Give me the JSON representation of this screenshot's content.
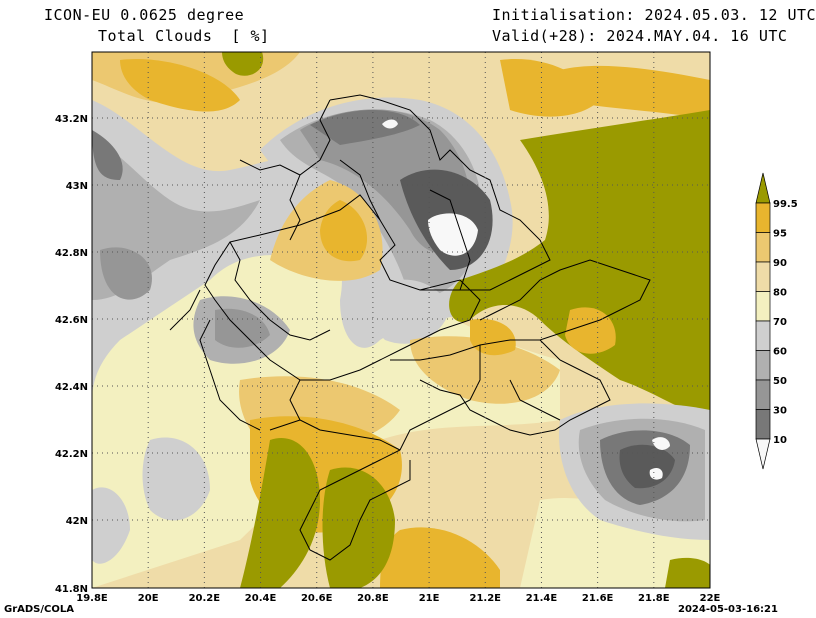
{
  "header": {
    "model": "ICON-EU 0.0625 degree",
    "variable": "Total Clouds  [ %]",
    "init": "Initialisation: 2024.05.03. 12 UTC",
    "valid": "Valid(+28): 2024.MAY.04. 16 UTC"
  },
  "map": {
    "lon_labels": [
      "19.8E",
      "20E",
      "20.2E",
      "20.4E",
      "20.6E",
      "20.8E",
      "21E",
      "21.2E",
      "21.4E",
      "21.6E",
      "21.8E",
      "22E"
    ],
    "lat_labels": [
      "43.2N",
      "43N",
      "42.8N",
      "42.6N",
      "42.4N",
      "42.2N",
      "42N",
      "41.8N"
    ],
    "grid_style": "dotted"
  },
  "legend": {
    "levels": [
      "99.5",
      "95",
      "90",
      "80",
      "70",
      "60",
      "50",
      "30",
      "10"
    ],
    "colors": [
      "#c8ff66",
      "#9a9a00",
      "#e8b52e",
      "#ecc870",
      "#efdca8",
      "#f3f0c0",
      "#cfcfcf",
      "#b0b0b0",
      "#969696",
      "#787878",
      "#5a5a5a",
      "#f8f8f8"
    ]
  },
  "footer": {
    "left": "GrADS/COLA",
    "right": "2024-05-03-16:21"
  }
}
